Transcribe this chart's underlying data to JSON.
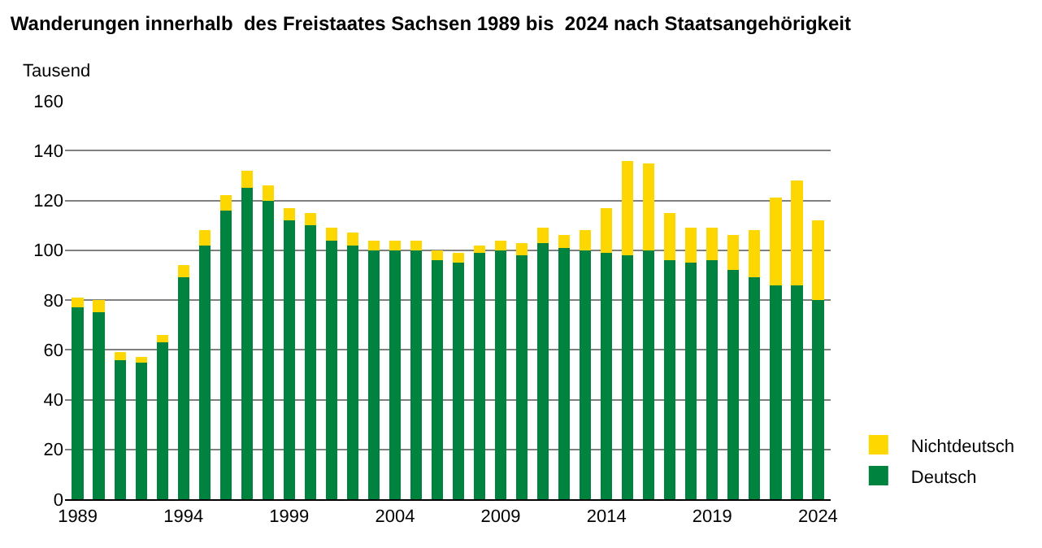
{
  "chart_data": {
    "type": "bar",
    "title": "Wanderungen innerhalb  des Freistaates Sachsen 1989 bis  2024 nach Staatsangehörigkeit",
    "ylabel": "Tausend",
    "x": [
      1989,
      1990,
      1991,
      1992,
      1993,
      1994,
      1995,
      1996,
      1997,
      1998,
      1999,
      2000,
      2001,
      2002,
      2003,
      2004,
      2005,
      2006,
      2007,
      2008,
      2009,
      2010,
      2011,
      2012,
      2013,
      2014,
      2015,
      2016,
      2017,
      2018,
      2019,
      2020,
      2021,
      2022,
      2023,
      2024
    ],
    "stacked": true,
    "series": [
      {
        "name": "Deutsch",
        "color": "#00833f",
        "values": [
          77,
          75,
          56,
          55,
          63,
          89,
          102,
          116,
          125,
          120,
          112,
          110,
          104,
          102,
          100,
          100,
          100,
          96,
          95,
          99,
          100,
          98,
          103,
          101,
          100,
          99,
          98,
          100,
          96,
          95,
          96,
          92,
          89,
          86,
          86,
          80
        ]
      },
      {
        "name": "Nichtdeutsch",
        "color": "#ffd700",
        "values": [
          4,
          5,
          3,
          2,
          3,
          5,
          6,
          6,
          7,
          6,
          5,
          5,
          5,
          5,
          4,
          4,
          4,
          4,
          4,
          3,
          4,
          5,
          6,
          5,
          8,
          18,
          38,
          35,
          19,
          14,
          13,
          14,
          19,
          35,
          42,
          32
        ]
      }
    ],
    "xlim": [
      1988.4,
      2024.6
    ],
    "xticks": [
      1989,
      1994,
      1999,
      2004,
      2009,
      2014,
      2019,
      2024
    ],
    "ylim": [
      0,
      160
    ],
    "yticks": [
      0,
      20,
      40,
      60,
      80,
      100,
      120,
      140,
      160
    ],
    "grid": "y",
    "legend": "bottom right"
  }
}
